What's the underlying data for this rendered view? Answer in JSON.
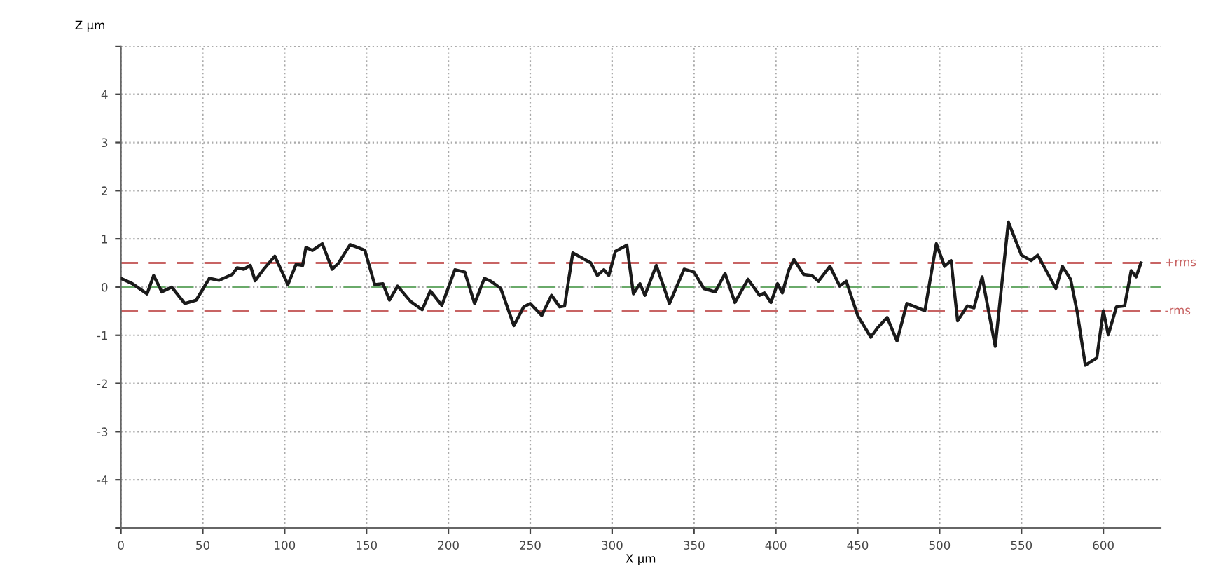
{
  "chart_data": {
    "type": "line",
    "xlabel": "X µm",
    "ylabel": "Z µm",
    "x": [
      0,
      7,
      16,
      20,
      25,
      31,
      39,
      46,
      54,
      60,
      68,
      71,
      75,
      79,
      82,
      87,
      94,
      102,
      107,
      111,
      113,
      117,
      123,
      129,
      133,
      140,
      147,
      149,
      155,
      160,
      164,
      169,
      177,
      184,
      189,
      196,
      204,
      210,
      216,
      222,
      226,
      232,
      240,
      246,
      250,
      257,
      263,
      268,
      271,
      276,
      287,
      291,
      295,
      298,
      302,
      309,
      313,
      317,
      320,
      327,
      335,
      344,
      350,
      356,
      363,
      369,
      375,
      383,
      390,
      393,
      397,
      401,
      404,
      408,
      411,
      417,
      422,
      426,
      433,
      439,
      443,
      450,
      458,
      462,
      468,
      474,
      480,
      491,
      498,
      503,
      507,
      511,
      517,
      521,
      526,
      534,
      542,
      550,
      556,
      560,
      571,
      575,
      580,
      584,
      589,
      596,
      600,
      603,
      608,
      613,
      617,
      620,
      623
    ],
    "series": [
      {
        "color": "#1a1a1a",
        "values": [
          0.18,
          0.07,
          -0.14,
          0.24,
          -0.1,
          0,
          -0.34,
          -0.27,
          0.18,
          0.14,
          0.26,
          0.4,
          0.37,
          0.45,
          0.13,
          0.36,
          0.64,
          0.05,
          0.47,
          0.45,
          0.82,
          0.76,
          0.9,
          0.37,
          0.5,
          0.88,
          0.79,
          0.76,
          0.05,
          0.07,
          -0.27,
          0.02,
          -0.3,
          -0.47,
          -0.08,
          -0.38,
          0.36,
          0.31,
          -0.34,
          0.18,
          0.12,
          -0.03,
          -0.8,
          -0.41,
          -0.34,
          -0.59,
          -0.17,
          -0.41,
          -0.39,
          0.71,
          0.5,
          0.24,
          0.36,
          0.24,
          0.74,
          0.87,
          -0.14,
          0.07,
          -0.17,
          0.45,
          -0.34,
          0.37,
          0.31,
          -0.03,
          -0.1,
          0.28,
          -0.32,
          0.16,
          -0.17,
          -0.12,
          -0.32,
          0.07,
          -0.12,
          0.36,
          0.57,
          0.26,
          0.24,
          0.12,
          0.43,
          0.02,
          0.12,
          -0.59,
          -1.04,
          -0.85,
          -0.63,
          -1.12,
          -0.34,
          -0.49,
          0.9,
          0.43,
          0.55,
          -0.7,
          -0.39,
          -0.43,
          0.21,
          -1.23,
          1.35,
          0.66,
          0.55,
          0.66,
          -0.03,
          0.43,
          0.16,
          -0.51,
          -1.62,
          -1.47,
          -0.49,
          -0.99,
          -0.41,
          -0.39,
          0.34,
          0.21,
          0.5
        ]
      }
    ],
    "xlim": [
      0,
      635
    ],
    "xticks": [
      0,
      50,
      100,
      150,
      200,
      250,
      300,
      350,
      400,
      450,
      500,
      550,
      600
    ],
    "ylim": [
      -5,
      5
    ],
    "yticks": [
      {
        "value": -5,
        "label": null
      },
      -4,
      -3,
      -2,
      -1,
      0,
      1,
      2,
      3,
      4,
      {
        "value": 5,
        "label": null
      }
    ],
    "grid": true,
    "line_style": "solid",
    "ref_lines": [
      {
        "axis": "y",
        "value": 0.5,
        "label": "+rms",
        "color": "#c86464",
        "line_style": "dashed"
      },
      {
        "axis": "y",
        "value": -0.5,
        "label": "-rms",
        "color": "#c86464",
        "line_style": "dashed"
      },
      {
        "axis": "y",
        "value": 0,
        "color": "#6aaa6a",
        "line_style": "dashed"
      }
    ]
  }
}
